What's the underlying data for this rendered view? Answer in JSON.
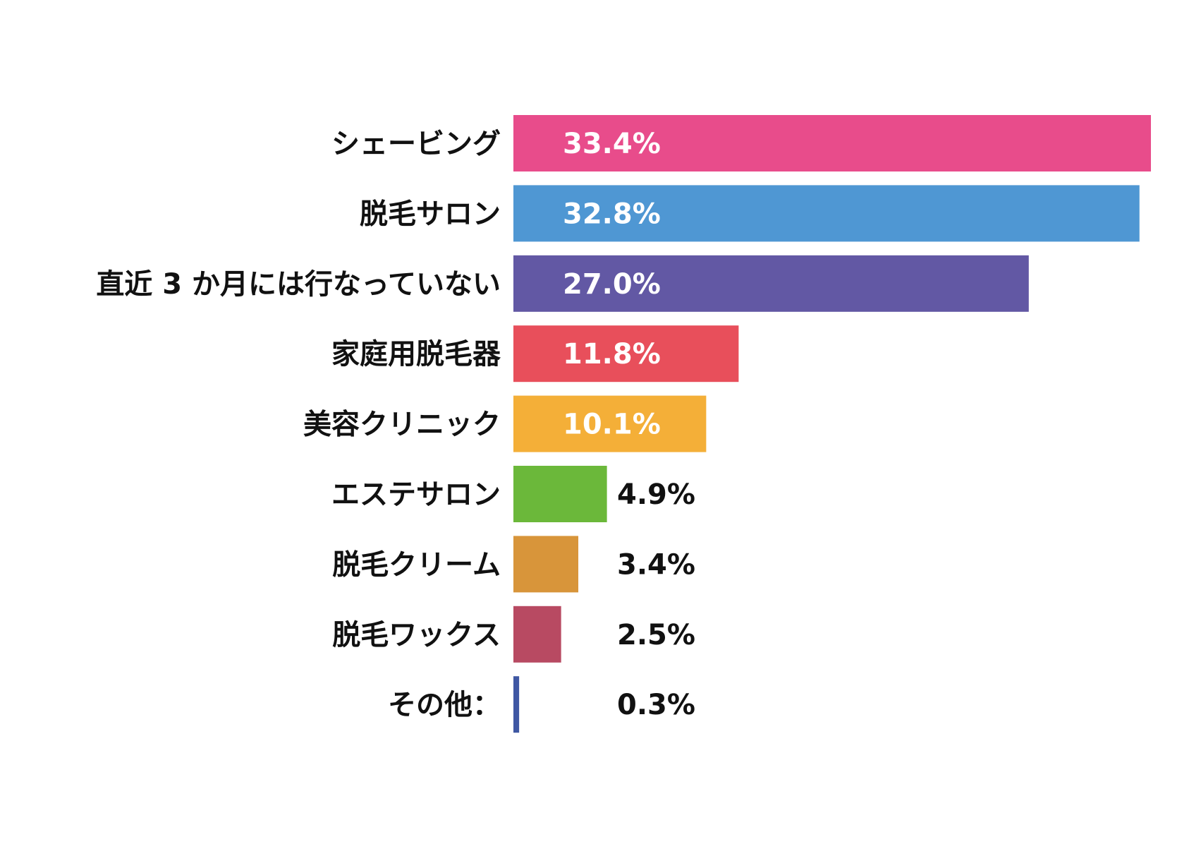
{
  "chart_data": {
    "type": "bar",
    "orientation": "horizontal",
    "unit": "%",
    "categories": [
      "シェービング",
      "脱毛サロン",
      "直近 3 か月には行なっていない",
      "家庭用脱毛器",
      "美容クリニック",
      "エステサロン",
      "脱毛クリーム",
      "脱毛ワックス",
      "その他："
    ],
    "values": [
      33.4,
      32.8,
      27.0,
      11.8,
      10.1,
      4.9,
      3.4,
      2.5,
      0.3
    ],
    "value_labels": [
      "33.4%",
      "32.8%",
      "27.0%",
      "11.8%",
      "10.1%",
      "4.9%",
      "3.4%",
      "2.5%",
      "0.3%"
    ],
    "colors": [
      "#e84c8b",
      "#4f97d3",
      "#6258a4",
      "#e84f5b",
      "#f4af38",
      "#6bb83a",
      "#d8953a",
      "#b84a62",
      "#3f57a3"
    ],
    "xlim": [
      0,
      33.4
    ],
    "grid": false,
    "legend": "none"
  }
}
